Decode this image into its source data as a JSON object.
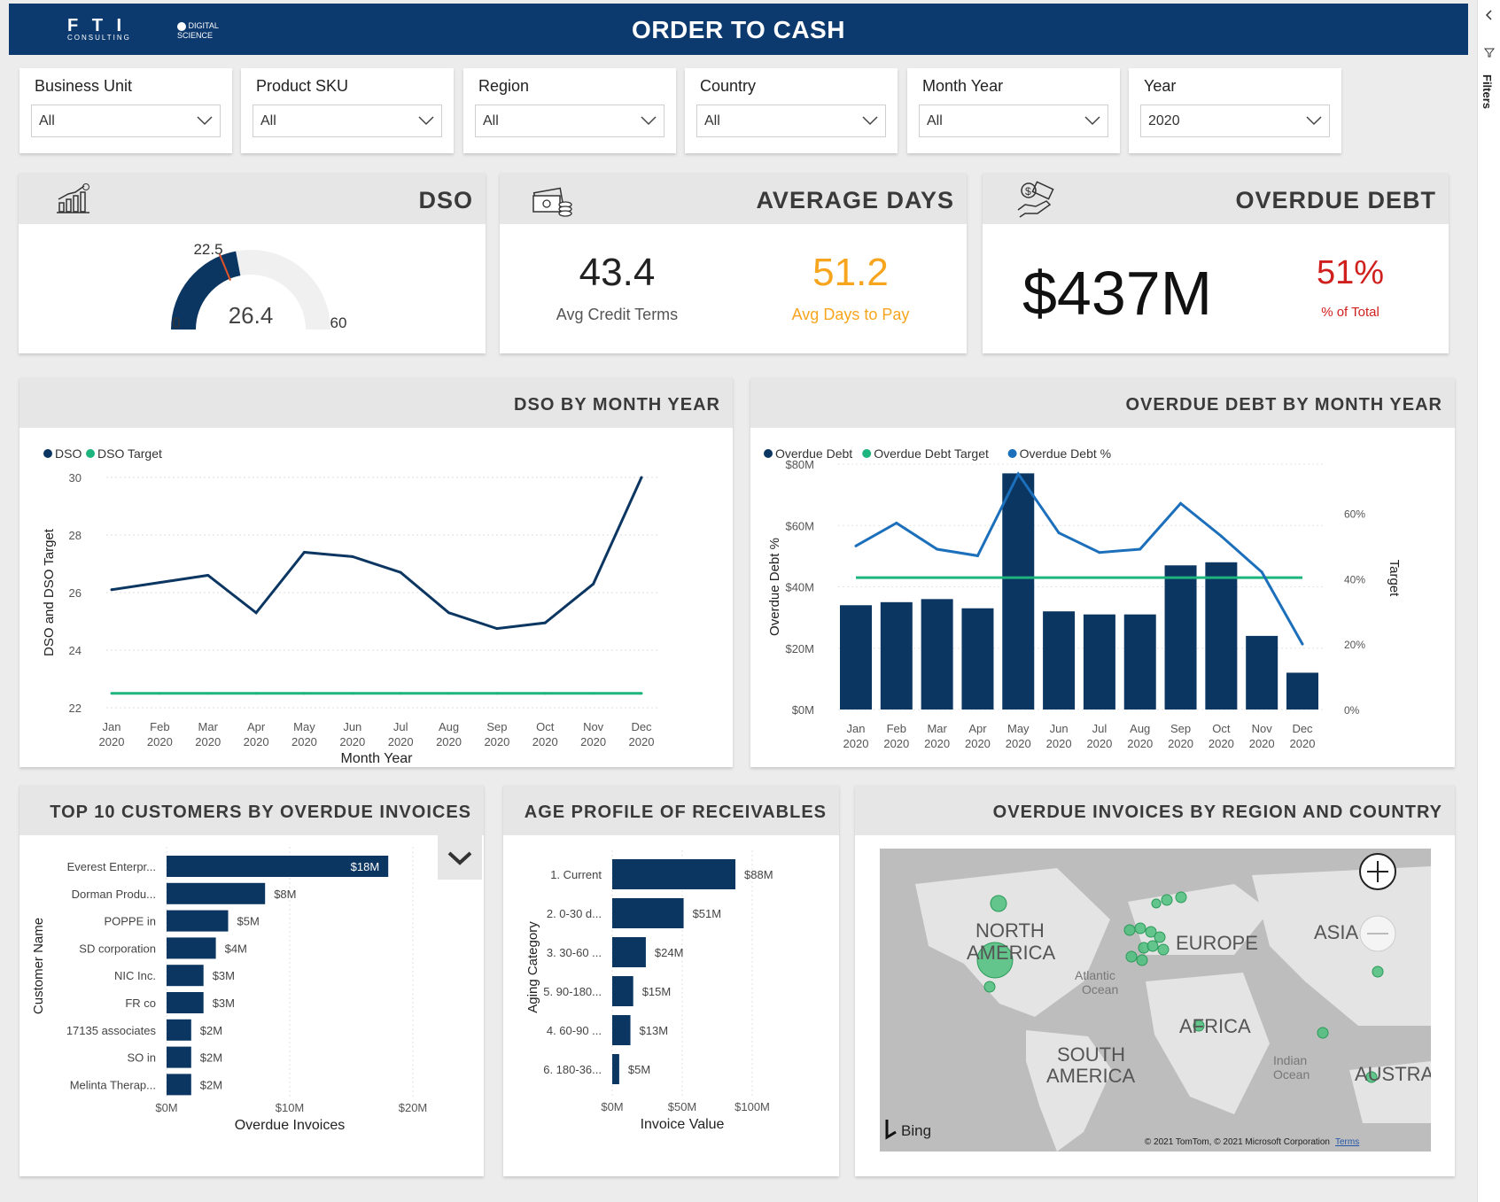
{
  "header": {
    "title": "ORDER TO CASH",
    "logo_text": "F T I",
    "logo_sub": "CONSULTING",
    "logo2_text": "DIGITAL SCIENCE"
  },
  "sidepanel": {
    "label": "Filters"
  },
  "slicers": [
    {
      "label": "Business Unit",
      "value": "All"
    },
    {
      "label": "Product SKU",
      "value": "All"
    },
    {
      "label": "Region",
      "value": "All"
    },
    {
      "label": "Country",
      "value": "All"
    },
    {
      "label": "Month Year",
      "value": "All"
    },
    {
      "label": "Year",
      "value": "2020"
    }
  ],
  "dso_card": {
    "title": "DSO",
    "gauge_value": "26.4",
    "gauge_value_num": 26.4,
    "gauge_min": "0",
    "gauge_max": "60",
    "gauge_max_num": 60,
    "gauge_target": "22.5",
    "gauge_target_num": 22.5
  },
  "avg_days_card": {
    "title": "AVERAGE DAYS",
    "credit_value": "43.4",
    "credit_label": "Avg Credit Terms",
    "pay_value": "51.2",
    "pay_label": "Avg Days to Pay"
  },
  "overdue_card": {
    "title": "OVERDUE DEBT",
    "amount": "$437M",
    "pct": "51%",
    "pct_label": "% of Total"
  },
  "dso_chart": {
    "title": "DSO BY MONTH YEAR",
    "legend": [
      "DSO",
      "DSO Target"
    ],
    "ylabel": "DSO and DSO Target",
    "xlabel": "Month Year",
    "yticks": [
      "30",
      "28",
      "26",
      "24",
      "22"
    ],
    "months": [
      "Jan",
      "Feb",
      "Mar",
      "Apr",
      "May",
      "Jun",
      "Jul",
      "Aug",
      "Sep",
      "Oct",
      "Nov",
      "Dec"
    ],
    "year": "2020"
  },
  "overdue_chart": {
    "title": "OVERDUE DEBT BY MONTH YEAR",
    "legend": [
      "Overdue Debt",
      "Overdue Debt Target",
      "Overdue Debt %"
    ],
    "ylabel_left": "Overdue Debt %",
    "ylabel_right": "Target",
    "yticks_left": [
      "$80M",
      "$60M",
      "$40M",
      "$20M",
      "$0M"
    ],
    "yticks_right": [
      "60%",
      "40%",
      "20%",
      "0%"
    ]
  },
  "top_customers": {
    "title": "TOP 10 CUSTOMERS BY OVERDUE INVOICES",
    "ylabel": "Customer Name",
    "xlabel": "Overdue Invoices",
    "xticks": [
      "$0M",
      "$10M",
      "$20M"
    ]
  },
  "age_profile": {
    "title": "AGE PROFILE OF RECEIVABLES",
    "ylabel": "Aging Category",
    "xlabel": "Invoice Value",
    "xticks": [
      "$0M",
      "$50M",
      "$100M"
    ]
  },
  "map_panel": {
    "title": "OVERDUE INVOICES BY REGION AND COUNTRY",
    "labels": {
      "north1": "NORTH",
      "north2": "AMERICA",
      "europe": "EUROPE",
      "asia": "ASIA",
      "africa": "AFRICA",
      "south1": "SOUTH",
      "south2": "AMERICA",
      "austra": "AUSTRA",
      "atlantic1": "Atlantic",
      "atlantic2": "Ocean",
      "indian1": "Indian",
      "indian2": "Ocean"
    },
    "bing": "Bing",
    "copyright": "© 2021 TomTom, © 2021 Microsoft Corporation",
    "terms": "Terms"
  },
  "chart_data": [
    {
      "type": "line",
      "title": "DSO BY MONTH YEAR",
      "categories": [
        "Jan 2020",
        "Feb 2020",
        "Mar 2020",
        "Apr 2020",
        "May 2020",
        "Jun 2020",
        "Jul 2020",
        "Aug 2020",
        "Sep 2020",
        "Oct 2020",
        "Nov 2020",
        "Dec 2020"
      ],
      "series": [
        {
          "name": "DSO",
          "values": [
            26.1,
            26.35,
            26.6,
            25.3,
            27.4,
            27.25,
            26.7,
            25.3,
            24.75,
            24.95,
            26.3,
            30.0
          ]
        },
        {
          "name": "DSO Target",
          "values": [
            22.5,
            22.5,
            22.5,
            22.5,
            22.5,
            22.5,
            22.5,
            22.5,
            22.5,
            22.5,
            22.5,
            22.5
          ]
        }
      ],
      "xlabel": "Month Year",
      "ylabel": "DSO and DSO Target",
      "ylim": [
        22,
        30
      ]
    },
    {
      "type": "bar",
      "title": "OVERDUE DEBT BY MONTH YEAR",
      "categories": [
        "Jan 2020",
        "Feb 2020",
        "Mar 2020",
        "Apr 2020",
        "May 2020",
        "Jun 2020",
        "Jul 2020",
        "Aug 2020",
        "Sep 2020",
        "Oct 2020",
        "Nov 2020",
        "Dec 2020"
      ],
      "series": [
        {
          "name": "Overdue Debt",
          "values": [
            34,
            35,
            36,
            33,
            77,
            32,
            31,
            31,
            47,
            48,
            24,
            12
          ]
        },
        {
          "name": "Overdue Debt Target",
          "values": [
            43,
            43,
            43,
            43,
            43,
            43,
            43,
            43,
            43,
            43,
            43,
            43
          ]
        },
        {
          "name": "Overdue Debt %",
          "values": [
            50,
            57,
            49,
            47,
            72,
            54,
            48,
            49,
            63,
            53,
            42,
            20
          ]
        }
      ],
      "ylim_left": [
        0,
        80
      ],
      "ylim_right": [
        0,
        75
      ],
      "ylabel": "Overdue Debt %",
      "y2label": "Target"
    },
    {
      "type": "bar",
      "orientation": "horizontal",
      "title": "TOP 10 CUSTOMERS BY OVERDUE INVOICES",
      "categories": [
        "Everest Enterpr...",
        "Dorman Produ...",
        "POPPE in",
        "SD corporation",
        "NIC Inc.",
        "FR co",
        "17135 associates",
        "SO in",
        "Melinta Therap..."
      ],
      "values": [
        18,
        8,
        5,
        4,
        3,
        3,
        2,
        2,
        2
      ],
      "labels": [
        "$18M",
        "$8M",
        "$5M",
        "$4M",
        "$3M",
        "$3M",
        "$2M",
        "$2M",
        "$2M"
      ],
      "xlim": [
        0,
        20
      ],
      "xlabel": "Overdue Invoices",
      "ylabel": "Customer Name"
    },
    {
      "type": "bar",
      "orientation": "horizontal",
      "title": "AGE PROFILE OF RECEIVABLES",
      "categories": [
        "1. Current",
        "2. 0-30 d...",
        "3. 30-60 ...",
        "5. 90-180...",
        "4. 60-90 ...",
        "6. 180-36..."
      ],
      "values": [
        88,
        51,
        24,
        15,
        13,
        5
      ],
      "labels": [
        "$88M",
        "$51M",
        "$24M",
        "$15M",
        "$13M",
        "$5M"
      ],
      "xlim": [
        0,
        100
      ],
      "xlabel": "Invoice Value",
      "ylabel": "Aging Category"
    }
  ],
  "colors": {
    "navy": "#0d3a6e",
    "bar": "#0c3662",
    "green": "#1db47e",
    "blue": "#1b6fbb",
    "orange": "#f7a51e",
    "red": "#d0201d"
  }
}
